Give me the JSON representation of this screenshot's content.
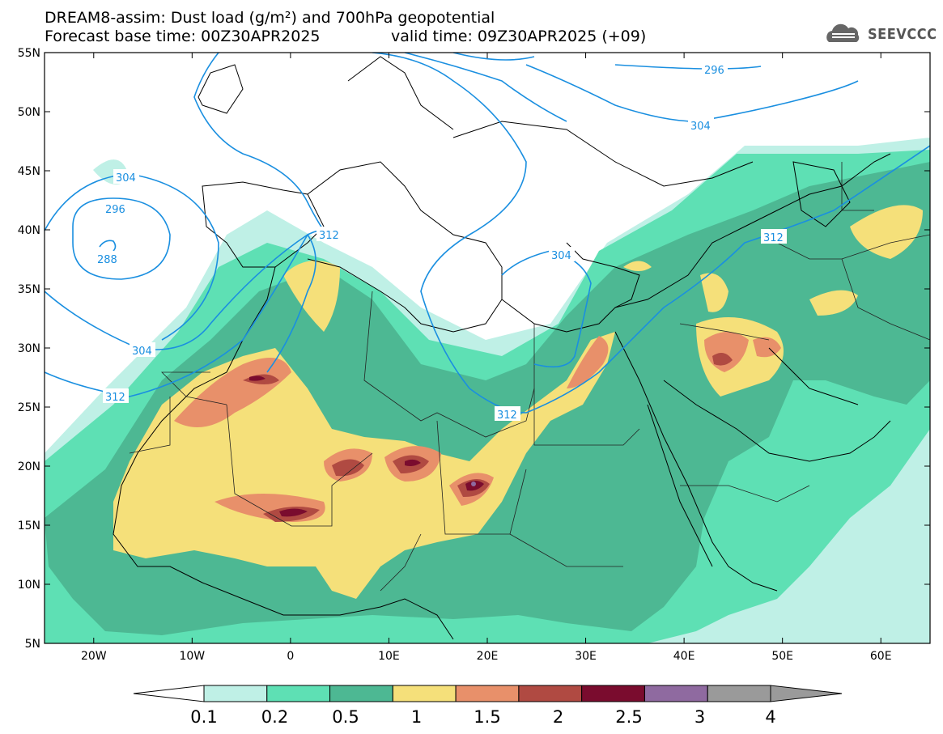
{
  "header": {
    "line1": "DREAM8-assim: Dust load (g/m²) and 700hPa geopotential",
    "line2a": "Forecast base time: 00Z30APR2025",
    "line2b": "valid time: 09Z30APR2025 (+09)"
  },
  "logo": {
    "text": "SEEVCCC",
    "icon": "cloud-logo-icon"
  },
  "axes": {
    "lat_labels": [
      "55N",
      "50N",
      "45N",
      "40N",
      "35N",
      "30N",
      "25N",
      "20N",
      "15N",
      "10N",
      "5N"
    ],
    "lon_labels": [
      "20W",
      "10W",
      "0",
      "10E",
      "20E",
      "30E",
      "40E",
      "50E",
      "60E"
    ],
    "lat_range": [
      5,
      55
    ],
    "lon_range": [
      -25,
      65
    ]
  },
  "contour_labels": [
    "296",
    "304",
    "296",
    "304",
    "288",
    "304",
    "312",
    "312",
    "312",
    "304",
    "312"
  ],
  "colorbar": {
    "ticks": [
      "0.1",
      "0.2",
      "0.5",
      "1",
      "1.5",
      "2",
      "2.5",
      "3",
      "4"
    ],
    "colors": [
      "#bff0e6",
      "#5ee0b4",
      "#4db893",
      "#f5e07a",
      "#e8906a",
      "#b04a42",
      "#7a0c2e",
      "#8f6aa0",
      "#9a9a9a"
    ]
  }
}
